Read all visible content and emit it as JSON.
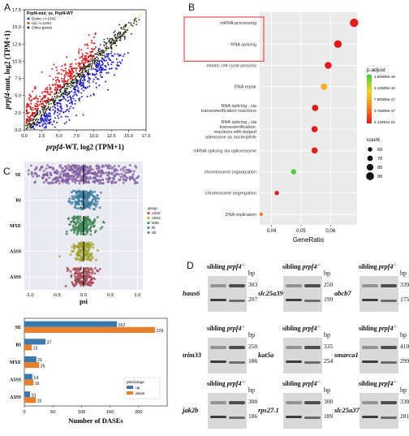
{
  "panel_labels": [
    "A",
    "B",
    "C",
    "D"
  ],
  "chart_data": [
    {
      "id": "A",
      "type": "scatter",
      "title": "Prpf4-mut_vs_Prpf4-WT",
      "xlabel_gene": "prpf4",
      "xlabel_rest": "-WT, log2  (TPM+1)",
      "ylabel_gene": "prpf4",
      "ylabel_rest": "-mut, log2  (TPM+1)",
      "xlim": [
        0,
        17.5
      ],
      "ylim": [
        0,
        17.5
      ],
      "x_ticks": [
        "0.0",
        "2.5",
        "5.0",
        "7.5",
        "10.0",
        "12.5",
        "15.0",
        "17.5"
      ],
      "y_ticks": [
        "0.0",
        "2.5",
        "5.0",
        "7.5",
        "10.0",
        "12.5",
        "15.0",
        "17.5"
      ],
      "legend": [
        {
          "label": "Down",
          "count": "n=1542",
          "color": "#1f1fd6"
        },
        {
          "label": "Up",
          "count": "n=1344",
          "color": "#e41a1c"
        },
        {
          "label": "Other genes",
          "count": "",
          "color": "#222222"
        }
      ]
    },
    {
      "id": "B",
      "type": "dot",
      "xlabel": "GeneRatio",
      "xlim": [
        0.036,
        0.069
      ],
      "x_ticks": [
        0.04,
        0.05,
        0.06
      ],
      "x_tick_labels": [
        "0.04",
        "0.05",
        "0.06"
      ],
      "terms": [
        {
          "lines": [
            "mRNA processing"
          ],
          "ratio": 0.068,
          "padj": 2.1e-24,
          "count": 95,
          "highlight": true
        },
        {
          "lines": [
            "RNA splicing"
          ],
          "ratio": 0.0625,
          "padj": 2.1e-24,
          "count": 88,
          "highlight": true
        },
        {
          "lines": [
            "mitotic cell cycle process"
          ],
          "ratio": 0.0592,
          "padj": 2.1e-24,
          "count": 82
        },
        {
          "lines": [
            "DNA repair"
          ],
          "ratio": 0.0578,
          "padj": 6.5e-17,
          "count": 78
        },
        {
          "lines": [
            "RNA splicing , via",
            "transesterification reactions"
          ],
          "ratio": 0.0548,
          "padj": 2.1e-24,
          "count": 77
        },
        {
          "lines": [
            "RNA splicing , via",
            "transesterification,",
            "reactions with bulged",
            "adenosine as nucleophile"
          ],
          "ratio": 0.0546,
          "padj": 2.1e-24,
          "count": 76
        },
        {
          "lines": [
            "mRNA splicing via spliceosome"
          ],
          "ratio": 0.0546,
          "padj": 2.1e-24,
          "count": 76
        },
        {
          "lines": [
            "chromosome organization"
          ],
          "ratio": 0.0475,
          "padj": 1.4e-16,
          "count": 68
        },
        {
          "lines": [
            "chromosome segregation"
          ],
          "ratio": 0.0418,
          "padj": 3e-24,
          "count": 60
        },
        {
          "lines": [
            "DNA replication"
          ],
          "ratio": 0.0365,
          "padj": 3.5e-17,
          "count": 52
        }
      ],
      "legend_padj_title": "p.adjust",
      "legend_padj_labels": [
        "1.50000e-16",
        "1.12500e-16",
        "7.50000e-17",
        "3.75000e-17",
        "2.13291e-24"
      ],
      "legend_count_title": "count",
      "legend_count_values": [
        60,
        70,
        80,
        90
      ]
    },
    {
      "id": "C-top",
      "type": "scatter",
      "xlabel": "psi",
      "xlim": [
        -1.1,
        1.1
      ],
      "x_ticks": [
        "-1.0",
        "-0.5",
        "0.0",
        "0.5",
        "1.0"
      ],
      "categories": [
        "SE",
        "RI",
        "MXE",
        "A5SS",
        "A3SS"
      ],
      "colors": [
        "#9467bd",
        "#3b8fb8",
        "#3d9a5b",
        "#b8b81e",
        "#c24a55"
      ],
      "legend_title": "group",
      "legend_entries": [
        "A3SS",
        "A5SS",
        "MXE",
        "RI",
        "SE"
      ]
    },
    {
      "id": "C-bottom",
      "type": "bar",
      "orientation": "horizontal",
      "categories": [
        "SE",
        "RI",
        "MXE",
        "A5SS",
        "A3SS"
      ],
      "series": [
        {
          "name": "up",
          "color": "#3a78b0",
          "values": [
            162,
            37,
            21,
            14,
            10
          ]
        },
        {
          "name": "down",
          "color": "#e8802b",
          "values": [
            229,
            13,
            26,
            16,
            20
          ]
        }
      ],
      "xlabel": "Number of DASEs",
      "xlim": [
        0,
        250
      ],
      "x_ticks": [
        0,
        50,
        100,
        150,
        200
      ],
      "legend_title": "psichange"
    }
  ],
  "gels": [
    {
      "gene": "haus6",
      "bp": [
        "303",
        "207"
      ]
    },
    {
      "gene": "slc25a39",
      "bp": [
        "250",
        "199"
      ]
    },
    {
      "gene": "abcb7",
      "bp": [
        "339",
        "175"
      ]
    },
    {
      "gene": "trim33",
      "bp": [
        "250",
        "186"
      ]
    },
    {
      "gene": "kat5a",
      "bp": [
        "335",
        "254"
      ]
    },
    {
      "gene": "smarca1",
      "bp": [
        "410",
        "299"
      ]
    },
    {
      "gene": "jak2b",
      "bp": [
        "300",
        "186"
      ]
    },
    {
      "gene": "rps27.1",
      "bp": [
        "300",
        "189"
      ]
    },
    {
      "gene": "slc25a37",
      "bp": [
        "338",
        "281"
      ]
    }
  ],
  "gel_text": {
    "sibling": "sibling",
    "mutant_gene": "prpf4",
    "mutant_sup": "-/-",
    "bp": "bp"
  }
}
